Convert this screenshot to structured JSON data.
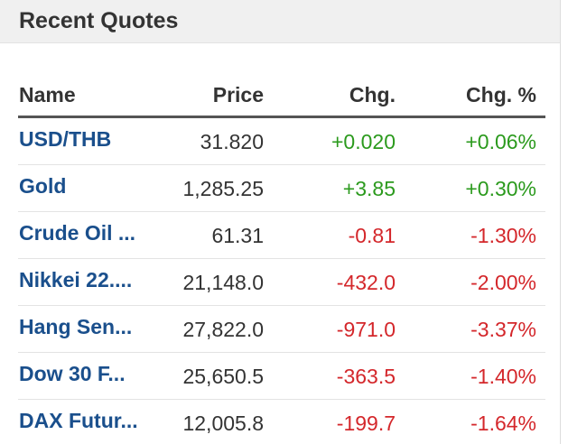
{
  "header": {
    "title": "Recent Quotes"
  },
  "table": {
    "columns": {
      "name": "Name",
      "price": "Price",
      "change": "Chg.",
      "change_pct": "Chg. %"
    },
    "rows": [
      {
        "name": "USD/THB",
        "price": "31.820",
        "change": "+0.020",
        "change_pct": "+0.06%",
        "direction": "up"
      },
      {
        "name": "Gold",
        "price": "1,285.25",
        "change": "+3.85",
        "change_pct": "+0.30%",
        "direction": "up"
      },
      {
        "name": "Crude Oil ...",
        "price": "61.31",
        "change": "-0.81",
        "change_pct": "-1.30%",
        "direction": "down"
      },
      {
        "name": "Nikkei 22....",
        "price": "21,148.0",
        "change": "-432.0",
        "change_pct": "-2.00%",
        "direction": "down"
      },
      {
        "name": "Hang Sen...",
        "price": "27,822.0",
        "change": "-971.0",
        "change_pct": "-3.37%",
        "direction": "down"
      },
      {
        "name": "Dow 30 F...",
        "price": "25,650.5",
        "change": "-363.5",
        "change_pct": "-1.40%",
        "direction": "down"
      },
      {
        "name": "DAX Futur...",
        "price": "12,005.8",
        "change": "-199.7",
        "change_pct": "-1.64%",
        "direction": "down"
      }
    ]
  },
  "colors": {
    "link": "#1a4f8c",
    "positive": "#2b9a1d",
    "negative": "#d4272b",
    "header_bg": "#f0f0f0",
    "text": "#333333"
  }
}
